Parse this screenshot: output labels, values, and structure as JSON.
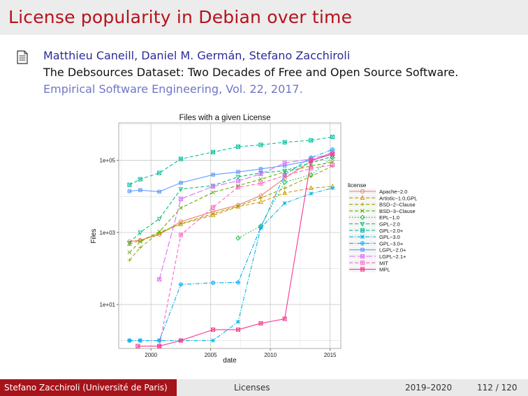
{
  "slide": {
    "title": "License popularity in Debian over time"
  },
  "reference": {
    "authors": "Matthieu Caneill, Daniel M. Germán, Stefano Zacchiroli",
    "paper_title": "The Debsources Dataset: Two Decades of Free and Open Source Software.",
    "venue": "Empirical Software Engineering, Vol. 22, 2017."
  },
  "footer": {
    "author": "Stefano Zacchiroli (Université de Paris)",
    "section": "Licenses",
    "year": "2019–2020",
    "page": "112 / 120"
  },
  "chart_data": {
    "type": "line",
    "title": "Files with a given License",
    "xlabel": "date",
    "ylabel": "Files",
    "y_scale": "log10",
    "x_ticks": [
      2000,
      2005,
      2010,
      2015
    ],
    "y_ticks": [
      {
        "value": 10,
        "label": "1e+01"
      },
      {
        "value": 1000,
        "label": "1e+03"
      },
      {
        "value": 100000,
        "label": "1e+05"
      }
    ],
    "xlim": [
      1997.3,
      2015.9
    ],
    "ylim": [
      0.6,
      1100000
    ],
    "grid": true,
    "legend_title": "license",
    "legend_position": "right",
    "series": [
      {
        "name": "Apache−2.0",
        "color": "#f07a6a",
        "dash": "solid",
        "marker": "circle",
        "x": [
          1998.2,
          1999.1,
          2000.7,
          2002.5,
          2005.2,
          2007.3,
          2009.2,
          2011.2,
          2013.4,
          2015.2
        ],
        "y": [
          560,
          610,
          880,
          2000,
          3800,
          5800,
          10500,
          32000,
          95000,
          170000
        ]
      },
      {
        "name": "Artistic−1.0,GPL",
        "color": "#d39200",
        "dash": "dashed",
        "marker": "triangle",
        "x": [
          1998.2,
          1999.1,
          2000.7,
          2002.5,
          2005.2,
          2007.3,
          2009.2,
          2011.2,
          2013.4,
          2015.2
        ],
        "y": [
          480,
          600,
          960,
          1700,
          3000,
          5200,
          7000,
          12500,
          17000,
          19000
        ]
      },
      {
        "name": "BSD−2−Clause",
        "color": "#93aa00",
        "dash": "dashed",
        "marker": "plus",
        "x": [
          1998.2,
          1999.1,
          2000.7,
          2002.5,
          2005.2,
          2007.3,
          2009.2,
          2011.2,
          2013.4,
          2015.2
        ],
        "y": [
          170,
          380,
          1000,
          1750,
          3300,
          5400,
          9000,
          17000,
          36000,
          70000
        ]
      },
      {
        "name": "BSD−3−Clause",
        "color": "#5eb300",
        "dash": "dashed",
        "marker": "cross",
        "x": [
          1998.2,
          1999.1,
          2000.7,
          2002.5,
          2005.2,
          2007.3,
          2009.2,
          2011.2,
          2013.4,
          2015.2
        ],
        "y": [
          280,
          550,
          1050,
          4800,
          13000,
          20000,
          30000,
          48000,
          70000,
          90000
        ]
      },
      {
        "name": "EPL−1.0",
        "color": "#00ba38",
        "dash": "dotted",
        "marker": "diamond",
        "x": [
          2007.3,
          2009.2,
          2011.2,
          2013.4,
          2015.2
        ],
        "y": [
          700,
          1500,
          25000,
          40000,
          120000
        ]
      },
      {
        "name": "GPL−2.0",
        "color": "#00bf74",
        "dash": "dashed",
        "marker": "triangle-down",
        "x": [
          1998.2,
          1999.1,
          2000.7,
          2002.5,
          2005.2,
          2007.3,
          2009.2,
          2011.2,
          2013.4,
          2015.2
        ],
        "y": [
          520,
          1000,
          2400,
          16000,
          20000,
          35000,
          45000,
          52000,
          85000,
          130000
        ]
      },
      {
        "name": "GPL−2.0+",
        "color": "#00c19f",
        "dash": "dashed",
        "marker": "square-cross",
        "x": [
          1998.2,
          1999.1,
          2000.7,
          2002.5,
          2005.2,
          2007.3,
          2009.2,
          2011.2,
          2013.4,
          2015.2
        ],
        "y": [
          21000,
          30000,
          45000,
          110000,
          170000,
          240000,
          270000,
          320000,
          360000,
          450000
        ]
      },
      {
        "name": "GPL−3.0",
        "color": "#00b9e3",
        "dash": "dashdot",
        "marker": "asterisk",
        "x": [
          1998.2,
          1999.1,
          2000.7,
          2002.5,
          2005.2,
          2007.3,
          2009.2,
          2011.2,
          2013.4,
          2015.2
        ],
        "y": [
          1,
          1,
          1,
          1,
          1,
          3.3,
          1350,
          6500,
          12000,
          17000
        ]
      },
      {
        "name": "GPL−3.0+",
        "color": "#00adfa",
        "dash": "dashdot",
        "marker": "circle-plus",
        "x": [
          1998.2,
          1999.1,
          2000.7,
          2002.5,
          2005.2,
          2007.3,
          2009.2,
          2011.2,
          2013.4,
          2015.2
        ],
        "y": [
          1,
          1,
          1,
          36,
          40,
          41,
          1400,
          40000,
          120000,
          200000
        ]
      },
      {
        "name": "LGPL−2.0+",
        "color": "#619cff",
        "dash": "solid",
        "marker": "circle-cross",
        "x": [
          1998.2,
          1999.1,
          2000.7,
          2002.5,
          2005.2,
          2007.3,
          2009.2,
          2011.2,
          2013.4,
          2015.2
        ],
        "y": [
          14000,
          15000,
          13500,
          24000,
          40000,
          48000,
          58000,
          72000,
          100000,
          150000
        ]
      },
      {
        "name": "LGPL−2.1+",
        "color": "#db72fb",
        "dash": "longdash",
        "marker": "square-x",
        "x": [
          2000.7,
          2002.5,
          2005.2,
          2007.3,
          2009.2,
          2011.2,
          2013.4,
          2015.2
        ],
        "y": [
          50,
          8500,
          19000,
          27000,
          42000,
          85000,
          110000,
          160000
        ]
      },
      {
        "name": "MIT",
        "color": "#ff61c3",
        "dash": "dashed",
        "marker": "square-plus",
        "x": [
          2000.7,
          2002.5,
          2005.2,
          2007.3,
          2009.2,
          2011.2,
          2013.4,
          2015.2
        ],
        "y": [
          0.7,
          850,
          5000,
          18000,
          23000,
          38000,
          60000,
          75000
        ]
      },
      {
        "name": "MPL",
        "color": "#f8368f",
        "dash": "solid",
        "marker": "square-x",
        "x": [
          1998.9,
          2000.7,
          2002.5,
          2005.2,
          2007.3,
          2009.2,
          2011.2,
          2013.4,
          2015.2
        ],
        "y": [
          0.7,
          0.7,
          1,
          2,
          2,
          3,
          4,
          100000,
          150000
        ]
      }
    ]
  }
}
